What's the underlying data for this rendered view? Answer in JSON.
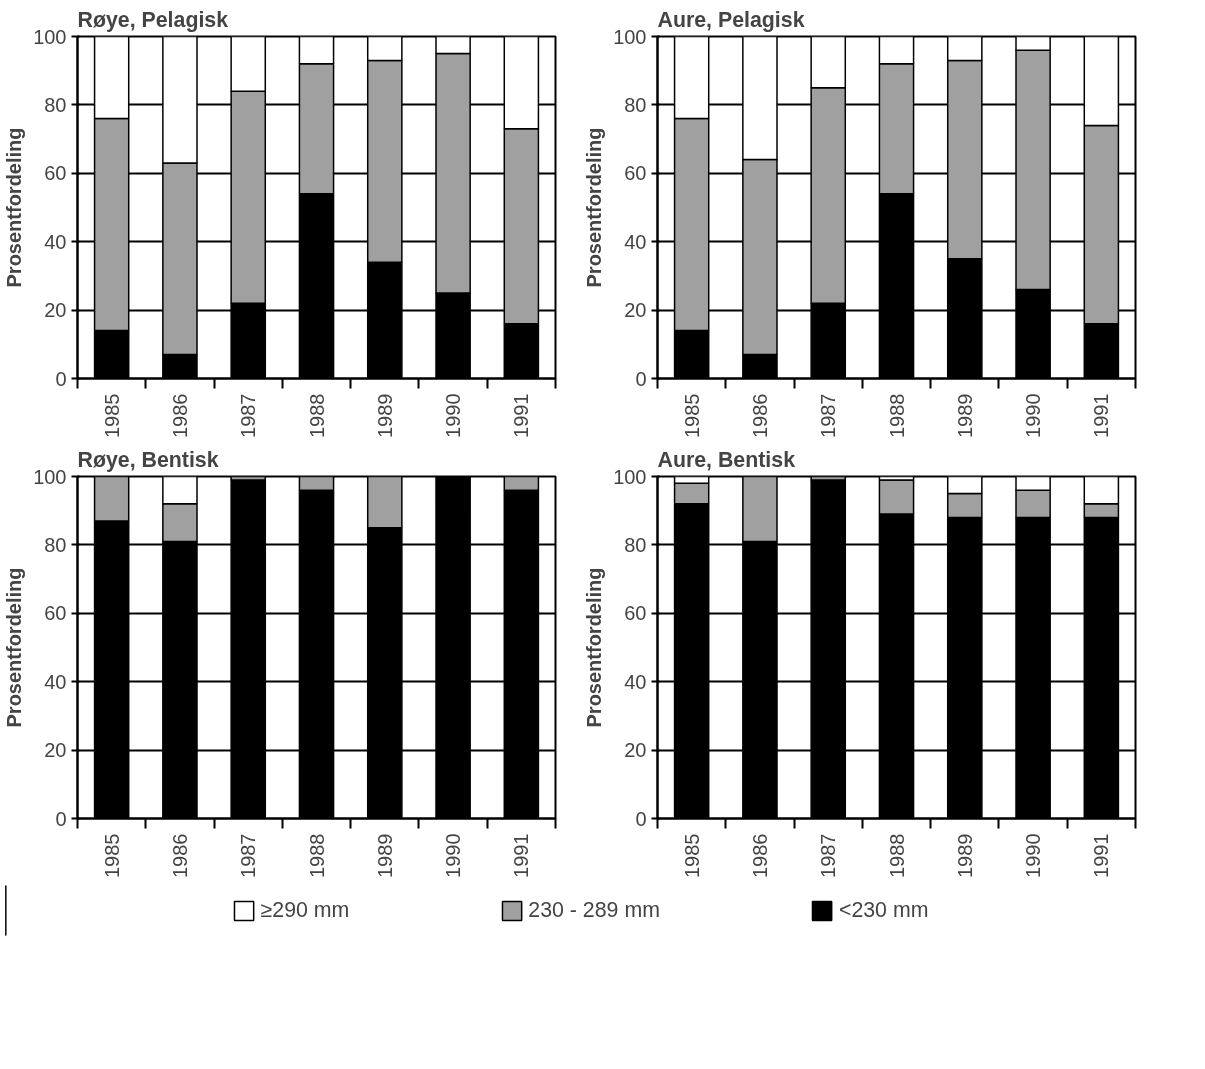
{
  "chart_data": [
    {
      "type": "bar",
      "title": "Røye,  Pelagisk",
      "ylabel": "Prosentfordeling",
      "categories": [
        "1985",
        "1986",
        "1987",
        "1988",
        "1989",
        "1990",
        "1991"
      ],
      "stacked": true,
      "ylim": [
        0,
        100
      ],
      "yticks": [
        0,
        20,
        40,
        60,
        80,
        100
      ],
      "grid": "y",
      "legend": "bottom",
      "series": [
        {
          "name": "<230 mm",
          "color": "#000000",
          "values": [
            14,
            7,
            22,
            54,
            34,
            25,
            16
          ]
        },
        {
          "name": "230 - 289 mm",
          "color": "#a0a0a0",
          "values": [
            62,
            56,
            62,
            38,
            59,
            70,
            57
          ]
        },
        {
          "name": "≥290 mm",
          "color": "#ffffff",
          "values": [
            24,
            37,
            16,
            8,
            7,
            5,
            27
          ]
        }
      ]
    },
    {
      "type": "bar",
      "title": "Aure,  Pelagisk",
      "ylabel": "Prosentfordeling",
      "categories": [
        "1985",
        "1986",
        "1987",
        "1988",
        "1989",
        "1990",
        "1991"
      ],
      "stacked": true,
      "ylim": [
        0,
        100
      ],
      "yticks": [
        0,
        20,
        40,
        60,
        80,
        100
      ],
      "grid": "y",
      "series": [
        {
          "color": "#000000",
          "values": [
            14,
            7,
            22,
            54,
            35,
            26,
            16
          ]
        },
        {
          "color": "#a0a0a0",
          "values": [
            62,
            57,
            63,
            38,
            58,
            70,
            58
          ]
        },
        {
          "color": "#ffffff",
          "values": [
            24,
            36,
            15,
            8,
            7,
            4,
            26
          ]
        }
      ]
    },
    {
      "type": "bar",
      "title": "Røye,  Bentisk",
      "ylabel": "Prosentfordeling",
      "categories": [
        "1985",
        "1986",
        "1987",
        "1988",
        "1989",
        "1990",
        "1991"
      ],
      "stacked": true,
      "ylim": [
        0,
        100
      ],
      "yticks": [
        0,
        20,
        40,
        60,
        80,
        100
      ],
      "grid": "y",
      "series": [
        {
          "color": "#000000",
          "values": [
            87,
            81,
            99,
            96,
            85,
            100,
            96
          ]
        },
        {
          "color": "#a0a0a0",
          "values": [
            13,
            11,
            1,
            4,
            15,
            null,
            4
          ]
        },
        {
          "color": "#ffffff",
          "values": [
            null,
            8,
            null,
            null,
            null,
            null,
            null
          ]
        }
      ]
    },
    {
      "type": "bar",
      "title": "Aure,  Bentisk",
      "ylabel": "Prosentfordeling",
      "categories": [
        "1985",
        "1986",
        "1987",
        "1988",
        "1989",
        "1990",
        "1991"
      ],
      "stacked": true,
      "ylim": [
        0,
        100
      ],
      "yticks": [
        0,
        20,
        40,
        60,
        80,
        100
      ],
      "grid": "y",
      "series": [
        {
          "color": "#000000",
          "values": [
            92,
            81,
            99,
            89,
            88,
            88,
            88
          ]
        },
        {
          "color": "#a0a0a0",
          "values": [
            6,
            19,
            1,
            10,
            7,
            8,
            4
          ]
        },
        {
          "color": "#ffffff",
          "values": [
            2,
            null,
            null,
            1,
            5,
            4,
            8
          ]
        }
      ]
    }
  ]
}
